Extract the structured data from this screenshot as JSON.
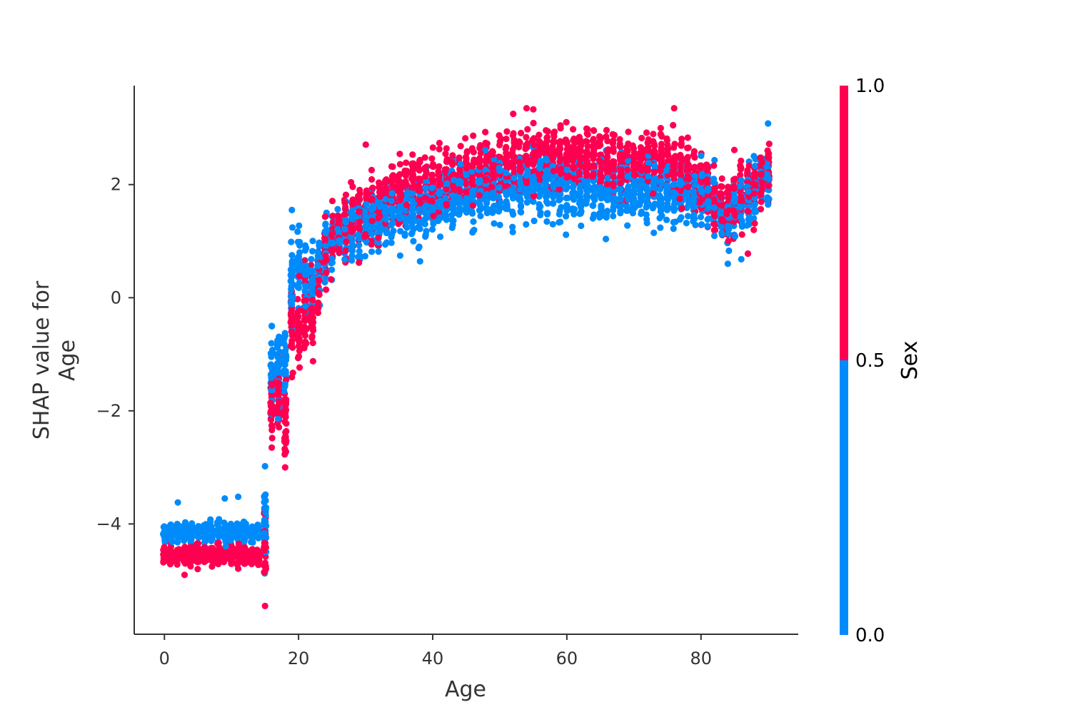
{
  "chart_data": {
    "type": "scatter",
    "title": "",
    "xlabel": "Age",
    "ylabel_lines": [
      "SHAP value for",
      "Age"
    ],
    "xlim": [
      -4.5,
      94.5
    ],
    "ylim": [
      -5.95,
      3.75
    ],
    "xticks": [
      0,
      20,
      40,
      60,
      80
    ],
    "yticks": [
      -4,
      -2,
      0,
      2
    ],
    "ytick_labels": [
      "−4",
      "−2",
      "0",
      "2"
    ],
    "grid": false,
    "colorbar": {
      "title": "Sex",
      "ticks": [
        1.0,
        0.5,
        0.0
      ],
      "tick_labels": [
        "1.0",
        "0.5",
        "0.0"
      ],
      "low_color": "#008bfb",
      "high_color": "#ff0051"
    },
    "series": [
      {
        "color_value": 0,
        "color": "#008bfb",
        "trend": [
          [
            0,
            -4.15
          ],
          [
            14,
            -4.15
          ],
          [
            15,
            -4.0
          ],
          [
            16,
            -1.3
          ],
          [
            18,
            -1.1
          ],
          [
            19,
            0.2
          ],
          [
            20,
            0.5
          ],
          [
            21,
            0.3
          ],
          [
            22,
            0.3
          ],
          [
            24,
            0.9
          ],
          [
            26,
            1.05
          ],
          [
            28,
            1.15
          ],
          [
            30,
            1.3
          ],
          [
            35,
            1.5
          ],
          [
            40,
            1.65
          ],
          [
            45,
            1.8
          ],
          [
            50,
            1.9
          ],
          [
            55,
            1.95
          ],
          [
            60,
            1.95
          ],
          [
            65,
            1.9
          ],
          [
            70,
            1.85
          ],
          [
            75,
            1.85
          ],
          [
            80,
            1.8
          ],
          [
            82,
            1.6
          ],
          [
            84,
            1.4
          ],
          [
            86,
            1.7
          ],
          [
            88,
            1.9
          ],
          [
            90,
            2.2
          ]
        ],
        "spread": 0.42
      },
      {
        "color_value": 1,
        "color": "#ff0051",
        "trend": [
          [
            0,
            -4.55
          ],
          [
            14,
            -4.55
          ],
          [
            15,
            -4.3
          ],
          [
            16,
            -1.9
          ],
          [
            17,
            -1.8
          ],
          [
            18,
            -2.2
          ],
          [
            19,
            -0.5
          ],
          [
            20,
            -0.6
          ],
          [
            21,
            -0.4
          ],
          [
            22,
            -0.2
          ],
          [
            24,
            0.8
          ],
          [
            26,
            1.15
          ],
          [
            28,
            1.35
          ],
          [
            30,
            1.55
          ],
          [
            35,
            1.85
          ],
          [
            40,
            2.0
          ],
          [
            45,
            2.2
          ],
          [
            50,
            2.3
          ],
          [
            55,
            2.45
          ],
          [
            60,
            2.45
          ],
          [
            65,
            2.4
          ],
          [
            70,
            2.35
          ],
          [
            75,
            2.45
          ],
          [
            80,
            2.1
          ],
          [
            82,
            1.6
          ],
          [
            84,
            1.5
          ],
          [
            86,
            1.8
          ],
          [
            88,
            2.0
          ],
          [
            90,
            2.3
          ]
        ],
        "spread": 0.45
      }
    ],
    "outliers": [
      {
        "x": 15,
        "y": -5.45,
        "color_value": 1
      },
      {
        "x": 18,
        "y": -3.0,
        "color_value": 1
      },
      {
        "x": 16,
        "y": -2.65,
        "color_value": 1
      },
      {
        "x": 19,
        "y": 1.55,
        "color_value": 0
      },
      {
        "x": 52,
        "y": 3.25,
        "color_value": 1
      },
      {
        "x": 54,
        "y": 3.35,
        "color_value": 1
      },
      {
        "x": 55,
        "y": 3.33,
        "color_value": 1
      },
      {
        "x": 76,
        "y": 3.35,
        "color_value": 1
      },
      {
        "x": 84,
        "y": 0.6,
        "color_value": 0
      },
      {
        "x": 86,
        "y": 0.68,
        "color_value": 0
      },
      {
        "x": 87,
        "y": 0.78,
        "color_value": 1
      },
      {
        "x": 90,
        "y": 3.08,
        "color_value": 0
      },
      {
        "x": 2,
        "y": -3.62,
        "color_value": 0
      },
      {
        "x": 9,
        "y": -3.55,
        "color_value": 0
      },
      {
        "x": 11,
        "y": -3.52,
        "color_value": 0
      },
      {
        "x": 3,
        "y": -4.9,
        "color_value": 1
      },
      {
        "x": 15,
        "y": -2.98,
        "color_value": 0
      },
      {
        "x": 16,
        "y": -0.5,
        "color_value": 0
      },
      {
        "x": 29,
        "y": 0.62,
        "color_value": 1
      },
      {
        "x": 38,
        "y": 0.9,
        "color_value": 0
      }
    ]
  }
}
